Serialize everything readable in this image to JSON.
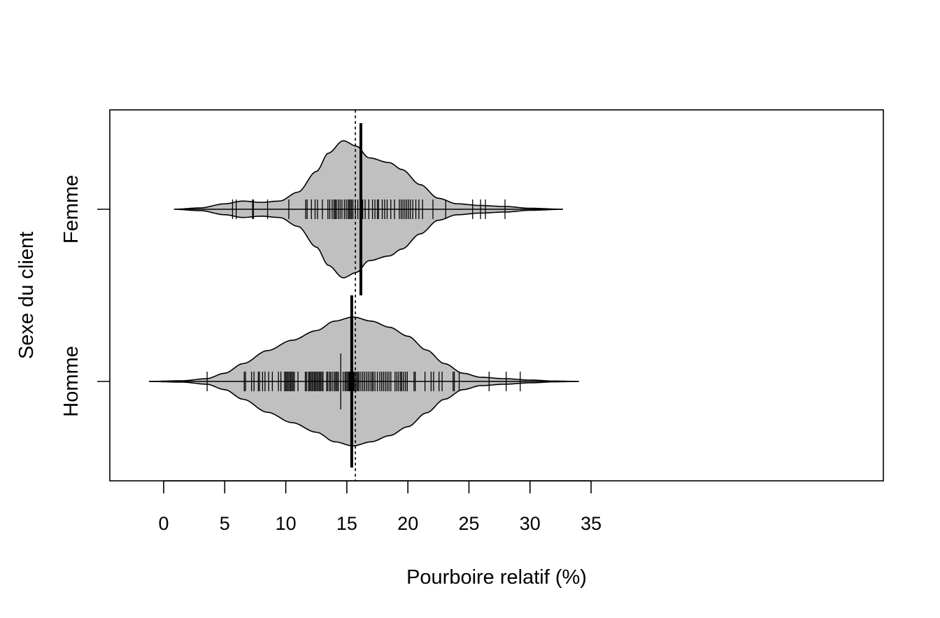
{
  "chart_data": {
    "type": "beanplot",
    "orientation": "horizontal",
    "title": "",
    "xlabel": "Pourboire relatif (%)",
    "ylabel": "Sexe du client",
    "xlim": [
      -2.6,
      35.3
    ],
    "xticks": [
      0,
      5,
      10,
      15,
      20,
      25,
      30,
      35
    ],
    "overall_mean": 15.7,
    "grid": false,
    "colors": {
      "bean_fill": "#c0c0c0",
      "outline": "#000000",
      "background": "#ffffff"
    },
    "categories": [
      "Femme",
      "Homme"
    ],
    "series": [
      {
        "name": "Femme",
        "mean": 16.15,
        "density_range": [
          0.85,
          32.7
        ],
        "density_profile": [
          [
            0.85,
            0.0
          ],
          [
            3.0,
            0.02
          ],
          [
            5.0,
            0.08
          ],
          [
            6.5,
            0.12
          ],
          [
            8.0,
            0.1
          ],
          [
            9.5,
            0.12
          ],
          [
            11.0,
            0.25
          ],
          [
            12.5,
            0.55
          ],
          [
            13.5,
            0.82
          ],
          [
            14.7,
            1.0
          ],
          [
            15.8,
            0.92
          ],
          [
            16.8,
            0.75
          ],
          [
            18.5,
            0.68
          ],
          [
            19.5,
            0.58
          ],
          [
            21.0,
            0.36
          ],
          [
            22.5,
            0.16
          ],
          [
            24.0,
            0.08
          ],
          [
            26.0,
            0.055
          ],
          [
            28.0,
            0.04
          ],
          [
            30.0,
            0.015
          ],
          [
            32.7,
            0.0
          ]
        ],
        "observations": [
          5.64,
          5.94,
          7.28,
          7.35,
          8.51,
          10.25,
          11.63,
          11.75,
          12.1,
          12.4,
          12.6,
          13.0,
          13.45,
          13.6,
          13.8,
          13.95,
          14.05,
          14.15,
          14.3,
          14.45,
          14.6,
          14.8,
          14.95,
          15.1,
          15.2,
          15.3,
          15.39,
          15.5,
          15.7,
          15.9,
          16.3,
          16.5,
          16.8,
          17.1,
          17.3,
          17.5,
          17.6,
          17.9,
          18.1,
          18.3,
          18.6,
          18.9,
          19.3,
          19.45,
          19.6,
          19.75,
          19.9,
          20.05,
          20.2,
          20.4,
          20.65,
          20.9,
          21.2,
          22.05,
          23.1,
          25.3,
          25.95,
          26.35,
          27.95
        ]
      },
      {
        "name": "Homme",
        "mean": 15.4,
        "density_range": [
          -1.2,
          34.0
        ],
        "density_profile": [
          [
            -1.2,
            0.0
          ],
          [
            1.5,
            0.01
          ],
          [
            3.5,
            0.04
          ],
          [
            5.0,
            0.12
          ],
          [
            6.5,
            0.26
          ],
          [
            8.5,
            0.45
          ],
          [
            10.5,
            0.6
          ],
          [
            12.5,
            0.74
          ],
          [
            14.0,
            0.88
          ],
          [
            15.5,
            0.94
          ],
          [
            17.0,
            0.88
          ],
          [
            18.5,
            0.79
          ],
          [
            20.0,
            0.66
          ],
          [
            21.5,
            0.46
          ],
          [
            23.0,
            0.26
          ],
          [
            24.5,
            0.12
          ],
          [
            26.0,
            0.06
          ],
          [
            28.0,
            0.04
          ],
          [
            30.0,
            0.02
          ],
          [
            32.0,
            0.006
          ],
          [
            34.0,
            0.0
          ]
        ],
        "observations": [
          3.56,
          6.6,
          6.7,
          7.2,
          7.4,
          7.75,
          7.85,
          8.1,
          8.3,
          8.6,
          8.9,
          9.4,
          9.6,
          9.9,
          10.0,
          10.1,
          10.2,
          10.3,
          10.4,
          10.5,
          10.6,
          10.7,
          11.0,
          11.6,
          11.7,
          11.85,
          11.95,
          12.05,
          12.15,
          12.25,
          12.35,
          12.45,
          12.55,
          12.65,
          12.75,
          12.85,
          12.95,
          13.05,
          13.35,
          13.45,
          13.6,
          13.7,
          13.85,
          14.0,
          14.1,
          14.2,
          14.3,
          14.5,
          14.7,
          14.85,
          14.95,
          15.05,
          15.15,
          15.2,
          15.25,
          15.3,
          15.35,
          15.45,
          15.5,
          15.55,
          15.6,
          15.7,
          15.8,
          15.9,
          16.0,
          16.15,
          16.3,
          16.45,
          16.6,
          16.75,
          16.9,
          17.05,
          17.15,
          17.3,
          17.5,
          17.7,
          17.85,
          18.0,
          18.15,
          18.3,
          18.45,
          18.6,
          18.95,
          19.1,
          19.25,
          19.4,
          19.5,
          19.65,
          19.8,
          19.95,
          20.5,
          20.6,
          21.4,
          21.9,
          22.1,
          22.55,
          22.8,
          23.7,
          23.8,
          24.2,
          26.65,
          28.05,
          29.2
        ],
        "highlighted_ticks": [
          14.5
        ]
      }
    ]
  }
}
